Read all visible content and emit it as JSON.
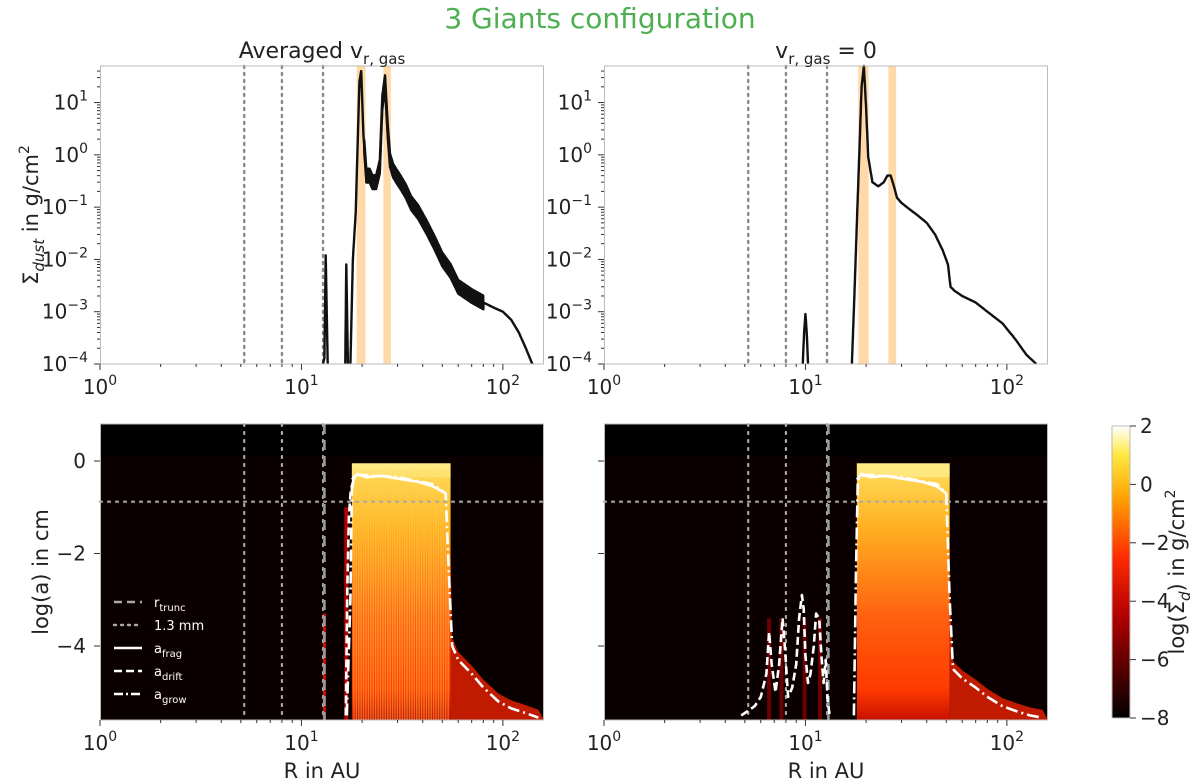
{
  "suptitle": "3 Giants configuration",
  "suptitle_color": "#4caf50",
  "colors": {
    "curve": "#111111",
    "band": "#ffd9a8",
    "vline": "#888888",
    "frame": "#bbbbbb"
  },
  "chart_data": [
    {
      "id": "top_left",
      "type": "line",
      "title_main": "Averaged v",
      "title_sub": "r, gas",
      "xlabel": "",
      "ylabel_pre": "Σ",
      "ylabel_sub": "dust",
      "ylabel_post": " in g/cm",
      "ylabel_sup": "2",
      "xscale": "log",
      "yscale": "log",
      "xlim": [
        1,
        160
      ],
      "ylim": [
        0.0001,
        50
      ],
      "xticks": [
        {
          "v": 1,
          "b": "10",
          "e": "0"
        },
        {
          "v": 10,
          "b": "10",
          "e": "1"
        },
        {
          "v": 100,
          "b": "10",
          "e": "2"
        }
      ],
      "yticks": [
        {
          "v": 0.0001,
          "b": "10",
          "e": "−4"
        },
        {
          "v": 0.001,
          "b": "10",
          "e": "−3"
        },
        {
          "v": 0.01,
          "b": "10",
          "e": "−2"
        },
        {
          "v": 0.1,
          "b": "10",
          "e": "−1"
        },
        {
          "v": 1,
          "b": "10",
          "e": "0"
        },
        {
          "v": 10,
          "b": "10",
          "e": "1"
        }
      ],
      "vlines": [
        5.2,
        8.0,
        12.8
      ],
      "bands": [
        [
          18.8,
          20.8
        ],
        [
          25.5,
          27.8
        ]
      ],
      "series": [
        {
          "name": "spike-1",
          "x": [
            12.8,
            13.0,
            13.2,
            13.5
          ],
          "y": [
            0.0001,
            0.00013,
            0.012,
            0.0001
          ]
        },
        {
          "name": "spike-2",
          "x": [
            16.5,
            16.7,
            17.0
          ],
          "y": [
            0.0001,
            0.008,
            0.0001
          ]
        },
        {
          "name": "main",
          "x": [
            17.5,
            18.0,
            18.6,
            19.0,
            19.4,
            19.8,
            20.3,
            21.0,
            21.8,
            22.5,
            23.5,
            24.5,
            25.2,
            26.0,
            26.8,
            27.5,
            28.5,
            29.5,
            31,
            33,
            35,
            38,
            42,
            46,
            50,
            55,
            60,
            70,
            80,
            90,
            100,
            110,
            120,
            130,
            140
          ],
          "y": [
            0.0001,
            0.01,
            0.08,
            1.5,
            25,
            40,
            2.5,
            0.4,
            0.4,
            0.3,
            0.3,
            0.6,
            10,
            25,
            3,
            0.8,
            0.5,
            0.4,
            0.3,
            0.2,
            0.12,
            0.08,
            0.04,
            0.02,
            0.01,
            0.006,
            0.003,
            0.002,
            0.0015,
            0.0012,
            0.001,
            0.0007,
            0.0004,
            0.0002,
            0.0001
          ]
        }
      ],
      "oscillation": {
        "x0": 20.5,
        "x1": 80,
        "factor": 1.35
      }
    },
    {
      "id": "top_right",
      "type": "line",
      "title_main": "v",
      "title_sub": "r, gas",
      "title_post": " = 0",
      "xlabel": "",
      "xscale": "log",
      "yscale": "log",
      "xlim": [
        1,
        160
      ],
      "ylim": [
        0.0001,
        50
      ],
      "xticks": [
        {
          "v": 1,
          "b": "10",
          "e": "0"
        },
        {
          "v": 10,
          "b": "10",
          "e": "1"
        },
        {
          "v": 100,
          "b": "10",
          "e": "2"
        }
      ],
      "yticks": [
        {
          "v": 0.0001,
          "b": "10",
          "e": "−4"
        },
        {
          "v": 0.001,
          "b": "10",
          "e": "−3"
        },
        {
          "v": 0.01,
          "b": "10",
          "e": "−2"
        },
        {
          "v": 0.1,
          "b": "10",
          "e": "−1"
        },
        {
          "v": 1,
          "b": "10",
          "e": "0"
        },
        {
          "v": 10,
          "b": "10",
          "e": "1"
        }
      ],
      "vlines": [
        5.2,
        8.0,
        12.8
      ],
      "bands": [
        [
          18.3,
          20.6
        ],
        [
          25.8,
          28.2
        ]
      ],
      "series": [
        {
          "name": "spike",
          "x": [
            9.7,
            9.85,
            10.0,
            10.15,
            10.3
          ],
          "y": [
            0.0001,
            0.0004,
            0.0009,
            0.0004,
            0.0001
          ]
        },
        {
          "name": "main",
          "x": [
            17.0,
            17.5,
            18.0,
            18.5,
            19.0,
            19.5,
            20.0,
            20.5,
            21.5,
            23.0,
            24.5,
            25.5,
            26.5,
            27.5,
            28.5,
            30,
            33,
            36,
            40,
            44,
            48,
            51,
            52.5,
            55,
            60,
            70,
            80,
            95,
            110,
            125,
            140
          ],
          "y": [
            0.0001,
            0.002,
            0.05,
            1.0,
            20,
            50,
            8,
            0.9,
            0.3,
            0.25,
            0.3,
            0.4,
            0.4,
            0.25,
            0.15,
            0.12,
            0.09,
            0.07,
            0.05,
            0.03,
            0.015,
            0.008,
            0.003,
            0.0025,
            0.002,
            0.0015,
            0.001,
            0.0006,
            0.0003,
            0.00015,
            0.0001
          ]
        }
      ]
    },
    {
      "id": "bottom_left",
      "type": "heatmap",
      "xlabel": "R in AU",
      "ylabel": "log(a) in cm",
      "xscale": "log",
      "xlim": [
        1,
        160
      ],
      "ylim": [
        -5.6,
        0.8
      ],
      "xticks": [
        {
          "v": 1,
          "b": "10",
          "e": "0"
        },
        {
          "v": 10,
          "b": "10",
          "e": "1"
        },
        {
          "v": 100,
          "b": "10",
          "e": "2"
        }
      ],
      "yticks": [
        {
          "v": 0,
          "t": "0"
        },
        {
          "v": -2,
          "t": "−2"
        },
        {
          "v": -4,
          "t": "−4"
        }
      ],
      "vlines": [
        5.2,
        8.0,
        12.8
      ],
      "r_trunc": 13.0,
      "hline": -0.88,
      "region": {
        "x0": 17.8,
        "x1": 55,
        "top": -0.05,
        "bottom": -5.6
      },
      "a_frag": {
        "x": [
          17.8,
          19.0,
          21.0,
          25,
          30,
          38,
          45,
          52
        ],
        "y": [
          -0.4,
          -0.28,
          -0.35,
          -0.32,
          -0.38,
          -0.45,
          -0.55,
          -0.7
        ]
      },
      "a_grow": {
        "x": [
          16.8,
          17.5,
          17.8,
          18.5,
          20,
          30,
          45,
          52,
          54,
          56,
          60,
          70,
          80,
          95,
          110,
          130,
          150
        ],
        "y": [
          -5.5,
          -3.0,
          -0.6,
          -0.3,
          -0.3,
          -0.35,
          -0.5,
          -0.7,
          -2.5,
          -4.0,
          -4.3,
          -4.6,
          -4.9,
          -5.2,
          -5.35,
          -5.45,
          -5.55
        ]
      },
      "a_drift": {
        "x": [
          16.6,
          16.9,
          17.2,
          17.6,
          18.5
        ],
        "y": [
          -5.5,
          -2.8,
          -1.2,
          -0.6,
          -0.3
        ]
      },
      "legend": [
        {
          "name": "r",
          "sub": "trunc",
          "style": "dashed-grey"
        },
        {
          "name": "1.3 mm",
          "sub": "",
          "style": "dotted-grey"
        },
        {
          "name": "a",
          "sub": "frag",
          "style": "solid"
        },
        {
          "name": "a",
          "sub": "drift",
          "style": "dashed"
        },
        {
          "name": "a",
          "sub": "grow",
          "style": "dashdot"
        }
      ]
    },
    {
      "id": "bottom_right",
      "type": "heatmap",
      "xlabel": "R in AU",
      "xscale": "log",
      "xlim": [
        1,
        160
      ],
      "ylim": [
        -5.6,
        0.8
      ],
      "xticks": [
        {
          "v": 1,
          "b": "10",
          "e": "0"
        },
        {
          "v": 10,
          "b": "10",
          "e": "1"
        },
        {
          "v": 100,
          "b": "10",
          "e": "2"
        }
      ],
      "vlines": [
        5.2,
        8.0,
        12.8
      ],
      "r_trunc": 13.0,
      "hline": -0.88,
      "region": {
        "x0": 18.0,
        "x1": 52,
        "top": -0.05,
        "bottom": -5.6
      },
      "a_frag": {
        "x": [
          18.0,
          19.0,
          21.0,
          25,
          30,
          38,
          45,
          50
        ],
        "y": [
          -0.4,
          -0.28,
          -0.35,
          -0.32,
          -0.38,
          -0.45,
          -0.55,
          -0.7
        ]
      },
      "a_grow": {
        "x": [
          17.4,
          17.8,
          18.2,
          20,
          30,
          45,
          50,
          52,
          54,
          60,
          70,
          80,
          95,
          110,
          130,
          150
        ],
        "y": [
          -5.5,
          -2.5,
          -0.4,
          -0.3,
          -0.35,
          -0.5,
          -0.7,
          -3.0,
          -4.5,
          -4.7,
          -4.9,
          -5.1,
          -5.3,
          -5.4,
          -5.5,
          -5.55
        ]
      },
      "a_drift": {
        "x": [
          4.8,
          5.2,
          5.6,
          6.0,
          6.4,
          6.6,
          6.8,
          7.1,
          7.4,
          7.7,
          7.9,
          8.2,
          8.6,
          9.0,
          9.3,
          9.6,
          9.8,
          10.0,
          10.3,
          10.6,
          11.0,
          11.3,
          11.7,
          12.0,
          12.3,
          12.6,
          12.9,
          13.2
        ],
        "y": [
          -5.5,
          -5.4,
          -5.3,
          -5.1,
          -4.6,
          -3.7,
          -4.4,
          -5.0,
          -4.4,
          -3.4,
          -4.0,
          -5.1,
          -4.9,
          -4.4,
          -3.4,
          -2.9,
          -3.2,
          -4.2,
          -4.8,
          -4.6,
          -4.0,
          -3.3,
          -3.4,
          -4.2,
          -4.8,
          -4.3,
          -5.2,
          -5.5
        ]
      }
    }
  ],
  "colorbar": {
    "label_pre": "log(Σ",
    "label_sub": "d",
    "label_post": ") in g/cm",
    "label_sup": "2",
    "min": -8,
    "max": 2,
    "ticks": [
      {
        "v": 2,
        "t": "2"
      },
      {
        "v": 0,
        "t": "0"
      },
      {
        "v": -2,
        "t": "−2"
      },
      {
        "v": -4,
        "t": "−4"
      },
      {
        "v": -6,
        "t": "−6"
      },
      {
        "v": -8,
        "t": "−8"
      }
    ]
  }
}
